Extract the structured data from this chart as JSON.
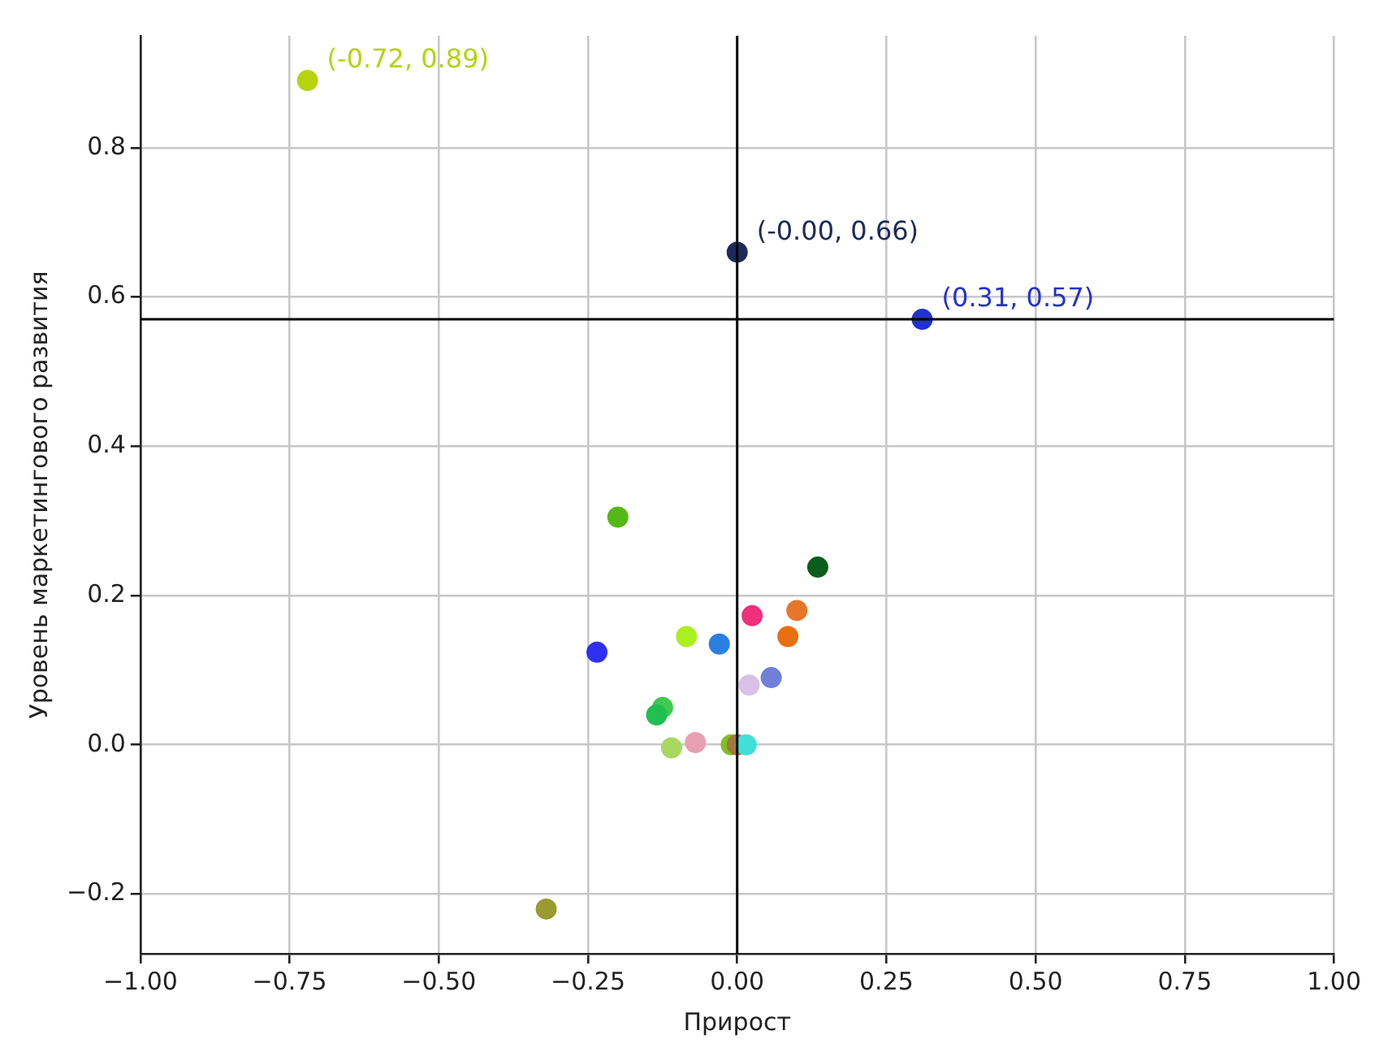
{
  "chart_data": {
    "type": "scatter",
    "xlabel": "Прирост",
    "ylabel": "Уровень маркетингового развития",
    "x": [
      -0.72,
      0,
      0.31,
      -0.32,
      -0.2,
      0.135,
      0.025,
      0.1,
      0.085,
      -0.085,
      -0.03,
      -0.235,
      0.057,
      0.02,
      -0.125,
      -0.135,
      -0.11,
      -0.07,
      -0.01,
      0,
      0.015
    ],
    "values": [
      0.89,
      0.66,
      0.57,
      -0.22,
      0.305,
      0.238,
      0.173,
      0.18,
      0.145,
      0.145,
      0.135,
      0.124,
      0.09,
      0.08,
      0.05,
      0.04,
      -0.004,
      0.003,
      0,
      0,
      0
    ],
    "colors": [
      "#b5d40f",
      "#1f2a5a",
      "#2233cc",
      "#9a9a30",
      "#55b814",
      "#0b5e1a",
      "#f0307a",
      "#e8762a",
      "#e87010",
      "#aaf020",
      "#2a80e0",
      "#3030f0",
      "#7080d8",
      "#d8c0e8",
      "#40c850",
      "#20c050",
      "#a8d860",
      "#e8a0b0",
      "#80c020",
      "#a07840",
      "#40e0d8"
    ],
    "xlim": [
      -1,
      1
    ],
    "xticks": [
      {
        "value": -1,
        "label": "−1.00"
      },
      {
        "value": -0.75,
        "label": "−0.75"
      },
      {
        "value": -0.5,
        "label": "−0.50"
      },
      {
        "value": -0.25,
        "label": "−0.25"
      },
      {
        "value": 0,
        "label": "0.00"
      },
      {
        "value": 0.25,
        "label": "0.25"
      },
      {
        "value": 0.5,
        "label": "0.50"
      },
      {
        "value": 0.75,
        "label": "0.75"
      },
      {
        "value": 1,
        "label": "1.00"
      }
    ],
    "ylim": [
      -0.28,
      0.95
    ],
    "yticks": [
      {
        "value": -0.2,
        "label": "−0.2"
      },
      {
        "value": 0,
        "label": "0.0"
      },
      {
        "value": 0.2,
        "label": "0.2"
      },
      {
        "value": 0.4,
        "label": "0.4"
      },
      {
        "value": 0.6,
        "label": "0.6"
      },
      {
        "value": 0.8,
        "label": "0.8"
      }
    ],
    "ref_lines": [
      {
        "axis": "x",
        "value": 0,
        "color": "#000000"
      },
      {
        "axis": "y",
        "value": 0.57,
        "color": "#000000"
      }
    ],
    "annotations": [
      {
        "text": "(-0.72, 0.89)",
        "x": -0.72,
        "y": 0.89
      },
      {
        "text": "(-0.00, 0.66)",
        "x": 0,
        "y": 0.66
      },
      {
        "text": "(0.31, 0.57)",
        "x": 0.31,
        "y": 0.57
      }
    ],
    "grid": true,
    "legend": false,
    "marker": "circle"
  }
}
